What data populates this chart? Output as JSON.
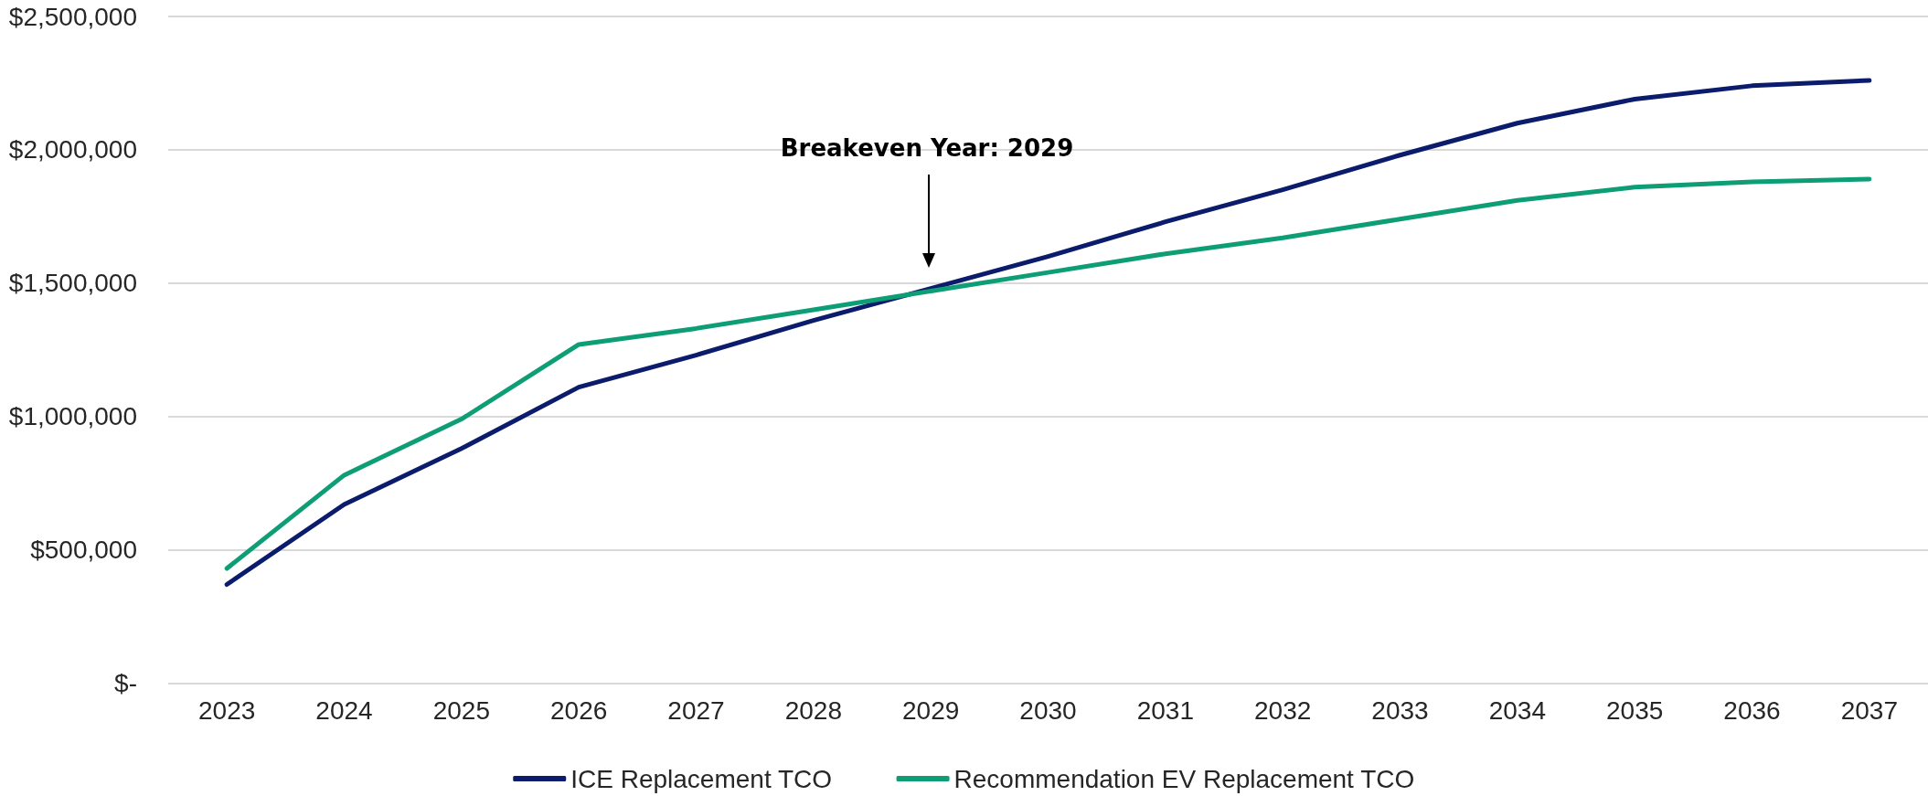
{
  "chart_data": {
    "type": "line",
    "categories": [
      "2023",
      "2024",
      "2025",
      "2026",
      "2027",
      "2028",
      "2029",
      "2030",
      "2031",
      "2032",
      "2033",
      "2034",
      "2035",
      "2036",
      "2037"
    ],
    "series": [
      {
        "name": "ICE Replacement TCO",
        "color": "#0b1c6c",
        "values": [
          370000,
          670000,
          880000,
          1110000,
          1230000,
          1360000,
          1480000,
          1600000,
          1730000,
          1850000,
          1980000,
          2100000,
          2190000,
          2240000,
          2260000
        ]
      },
      {
        "name": "Recommendation EV Replacement TCO",
        "color": "#0e9e76",
        "values": [
          430000,
          780000,
          990000,
          1270000,
          1330000,
          1400000,
          1470000,
          1540000,
          1610000,
          1670000,
          1740000,
          1810000,
          1860000,
          1880000,
          1890000
        ]
      }
    ],
    "ylim": [
      0,
      2500000
    ],
    "yticks": [
      {
        "value": 0,
        "label": "$-"
      },
      {
        "value": 500000,
        "label": "$500,000"
      },
      {
        "value": 1000000,
        "label": "$1,000,000"
      },
      {
        "value": 1500000,
        "label": "$1,500,000"
      },
      {
        "value": 2000000,
        "label": "$2,000,000"
      },
      {
        "value": 2500000,
        "label": "$2,500,000"
      }
    ],
    "annotations": [
      "Breakeven Year: 2029"
    ],
    "grid": "y",
    "legend": "bottom",
    "marker": "none",
    "line_style": "solid"
  }
}
